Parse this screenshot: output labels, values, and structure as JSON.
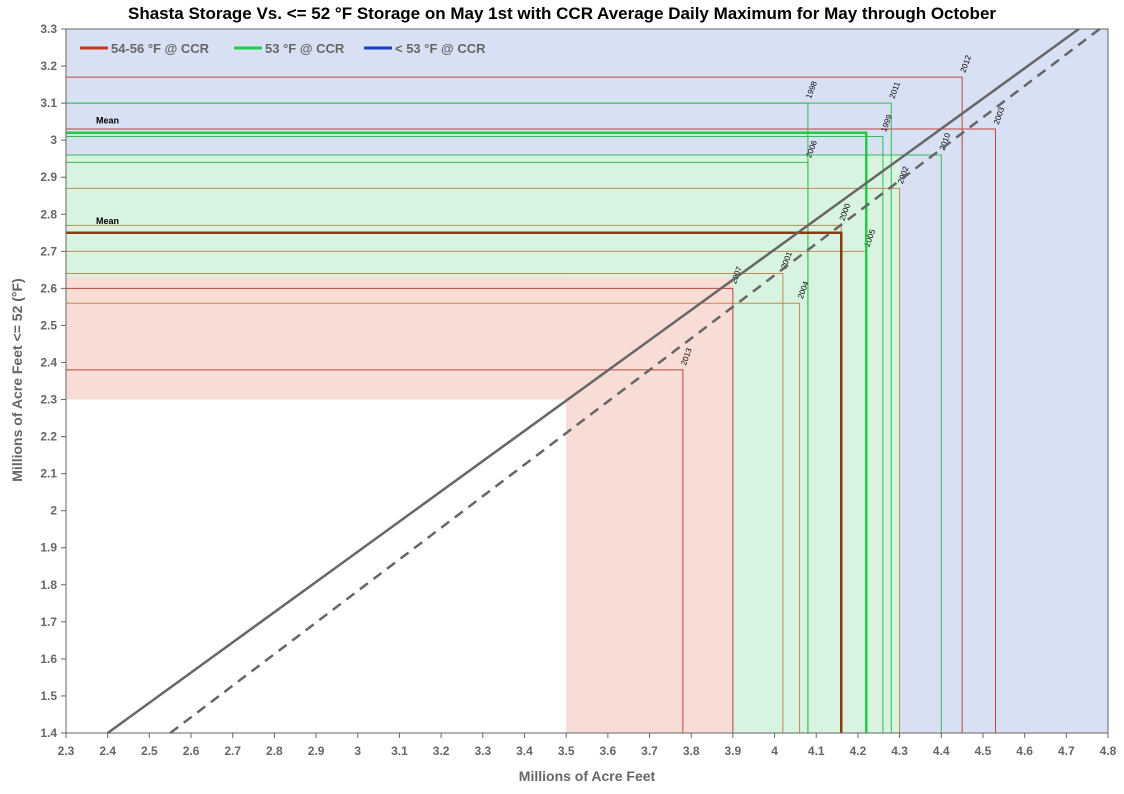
{
  "chart_data": {
    "type": "line",
    "title": "Shasta Storage Vs. <= 52 °F Storage on May 1st with CCR Average Daily Maximum for May through October",
    "xlabel": "Millions of Acre Feet",
    "ylabel": "Millions of Acre Feet <= 52 (°F)",
    "xlim": [
      2.3,
      4.8
    ],
    "ylim": [
      1.4,
      3.3
    ],
    "x_ticks": [
      "2.3",
      "2.4",
      "2.5",
      "2.6",
      "2.7",
      "2.8",
      "2.9",
      "3",
      "3.1",
      "3.2",
      "3.3",
      "3.4",
      "3.5",
      "3.6",
      "3.7",
      "3.8",
      "3.9",
      "4",
      "4.1",
      "4.2",
      "4.3",
      "4.4",
      "4.5",
      "4.6",
      "4.7",
      "4.8"
    ],
    "y_ticks": [
      "1.4",
      "1.5",
      "1.6",
      "1.7",
      "1.8",
      "1.9",
      "2",
      "2.1",
      "2.2",
      "2.3",
      "2.4",
      "2.5",
      "2.6",
      "2.7",
      "2.8",
      "2.9",
      "3",
      "3.1",
      "3.2",
      "3.3"
    ],
    "grid": false,
    "legend_position": "top-left",
    "legend": [
      {
        "label": "54-56 °F @ CCR",
        "color": "#c8391a"
      },
      {
        "label": "53 °F @ CCR",
        "color": "#22cc44"
      },
      {
        "label": "< 53 °F @ CCR",
        "color": "#1a3fcc"
      }
    ],
    "regions": [
      {
        "category": "< 53 °F @ CCR",
        "x": [
          4.3,
          4.8
        ],
        "y": [
          1.4,
          3.3
        ],
        "color": "#d8e0f4"
      },
      {
        "category": "< 53 °F @ CCR",
        "x": [
          2.3,
          4.8
        ],
        "y": [
          2.96,
          3.3
        ],
        "color": "#d8e0f4"
      },
      {
        "category": "53 °F @ CCR",
        "x": [
          3.9,
          4.3
        ],
        "y": [
          1.4,
          2.96
        ],
        "color": "#d8f4e0"
      },
      {
        "category": "53 °F @ CCR",
        "x": [
          2.3,
          4.3
        ],
        "y": [
          2.63,
          2.96
        ],
        "color": "#d8f4e0"
      },
      {
        "category": "54-56 °F @ CCR",
        "x": [
          3.5,
          3.9
        ],
        "y": [
          1.4,
          2.63
        ],
        "color": "#f7ddd6"
      },
      {
        "category": "54-56 °F @ CCR",
        "x": [
          2.3,
          3.9
        ],
        "y": [
          2.3,
          2.63
        ],
        "color": "#f7ddd6"
      }
    ],
    "series": [
      {
        "type": "year",
        "year": "2012",
        "x": 4.45,
        "y": 3.17,
        "color": "#c0453a"
      },
      {
        "type": "year",
        "year": "2003",
        "x": 4.53,
        "y": 3.03,
        "color": "#c0453a"
      },
      {
        "type": "year",
        "year": "1998",
        "x": 4.08,
        "y": 3.1,
        "color": "#33bb55"
      },
      {
        "type": "year",
        "year": "2011",
        "x": 4.28,
        "y": 3.1,
        "color": "#33bb55"
      },
      {
        "type": "year",
        "year": "1999",
        "x": 4.26,
        "y": 3.01,
        "color": "#33bb55"
      },
      {
        "type": "year",
        "year": "2006",
        "x": 4.08,
        "y": 2.94,
        "color": "#33bb55"
      },
      {
        "type": "year",
        "year": "2010",
        "x": 4.4,
        "y": 2.96,
        "color": "#33bb55"
      },
      {
        "type": "year",
        "year": "2002",
        "x": 4.3,
        "y": 2.87,
        "color": "#c08a55"
      },
      {
        "type": "year",
        "year": "2000",
        "x": 4.16,
        "y": 2.77,
        "color": "#c08a55"
      },
      {
        "type": "year",
        "year": "2005",
        "x": 4.22,
        "y": 2.7,
        "color": "#c08a55"
      },
      {
        "type": "year",
        "year": "2001",
        "x": 4.02,
        "y": 2.64,
        "color": "#c08a55"
      },
      {
        "type": "year",
        "year": "2004",
        "x": 4.06,
        "y": 2.56,
        "color": "#c08a55"
      },
      {
        "type": "year",
        "year": "2007",
        "x": 3.9,
        "y": 2.6,
        "color": "#c0453a"
      },
      {
        "type": "year",
        "year": "2013",
        "x": 3.78,
        "y": 2.38,
        "color": "#c0453a"
      },
      {
        "type": "mean",
        "label": "Mean",
        "x": 4.22,
        "y": 3.02,
        "color": "#22cc44"
      },
      {
        "type": "mean",
        "label": "Mean",
        "x": 4.16,
        "y": 2.75,
        "color": "#8b3a10"
      },
      {
        "type": "diagonal",
        "style": "solid",
        "points": [
          [
            2.4,
            1.4
          ],
          [
            4.73,
            3.3
          ]
        ],
        "color": "#666666"
      },
      {
        "type": "diagonal",
        "style": "dashed",
        "points": [
          [
            2.55,
            1.4
          ],
          [
            4.78,
            3.3
          ]
        ],
        "color": "#666666"
      }
    ]
  }
}
